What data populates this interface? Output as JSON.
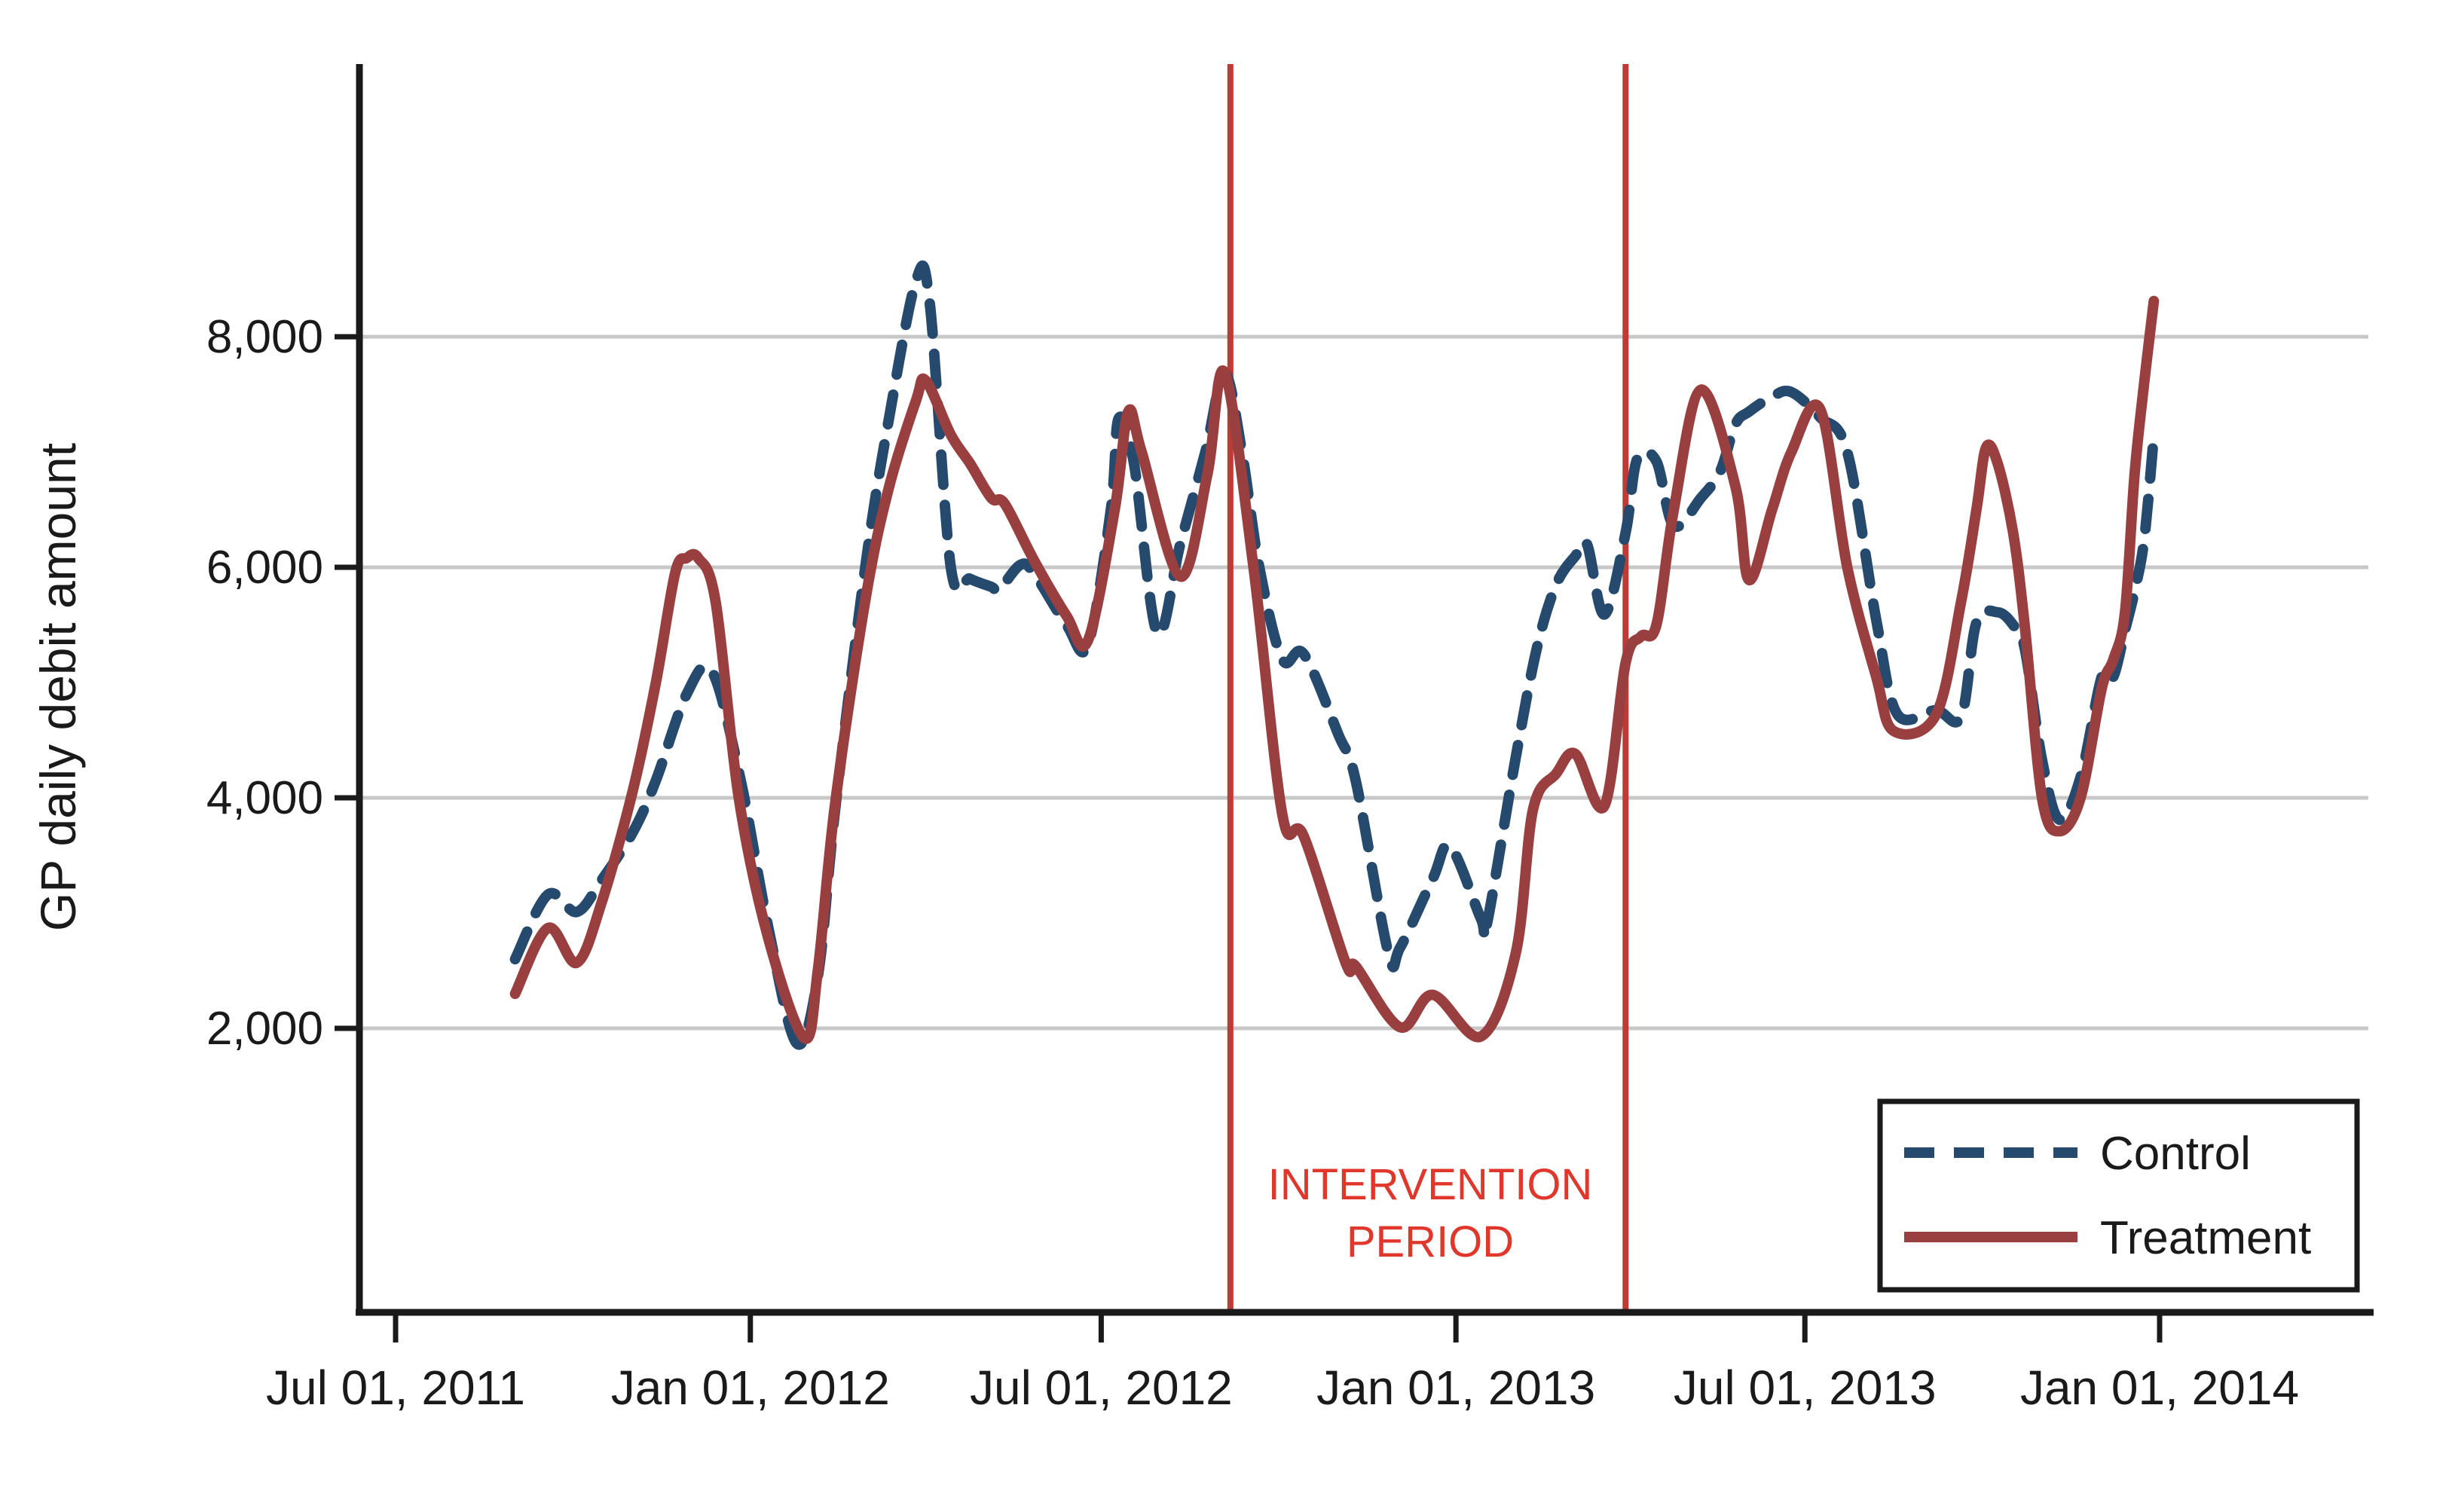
{
  "chart_data": {
    "type": "line",
    "title": "",
    "xlabel": "",
    "ylabel": "GP daily debit amount",
    "grid": true,
    "legend_position": "bottom-right",
    "colors": {
      "control": "#264a6d",
      "treatment": "#9a3f3f",
      "grid": "#c8c8c8",
      "axis": "#1a1a1a",
      "intervention_line": "#be3a34",
      "intervention_text": "#e0372c",
      "background": "#ffffff"
    },
    "y_ticks": [
      {
        "value": 2000,
        "label": "2,000"
      },
      {
        "value": 4000,
        "label": "4,000"
      },
      {
        "value": 6000,
        "label": "6,000"
      },
      {
        "value": 8000,
        "label": "8,000"
      }
    ],
    "x_ticks": [
      {
        "date": "2011-07-01",
        "label": "Jul 01, 2011"
      },
      {
        "date": "2012-01-01",
        "label": "Jan 01, 2012"
      },
      {
        "date": "2012-07-01",
        "label": "Jul 01, 2012"
      },
      {
        "date": "2013-01-01",
        "label": "Jan 01, 2013"
      },
      {
        "date": "2013-07-01",
        "label": "Jul 01, 2013"
      },
      {
        "date": "2014-01-01",
        "label": "Jan 01, 2014"
      }
    ],
    "intervention_period": {
      "text_line1": "INTERVENTION",
      "text_line2": "PERIOD",
      "start": "2012-09-06",
      "end": "2013-03-30"
    },
    "legend": {
      "control_label": "Control",
      "treatment_label": "Treatment"
    },
    "series": [
      {
        "name": "Control",
        "style": "dashed",
        "color": "#264a6d",
        "points": [
          [
            "2011-09-01",
            2600
          ],
          [
            "2011-09-18",
            3160
          ],
          [
            "2011-10-03",
            3010
          ],
          [
            "2011-10-16",
            3290
          ],
          [
            "2011-11-01",
            3700
          ],
          [
            "2011-11-13",
            4150
          ],
          [
            "2011-11-29",
            4900
          ],
          [
            "2011-12-12",
            5100
          ],
          [
            "2011-12-27",
            4150
          ],
          [
            "2012-01-10",
            2900
          ],
          [
            "2012-01-25",
            1870
          ],
          [
            "2012-02-05",
            2450
          ],
          [
            "2012-02-14",
            3900
          ],
          [
            "2012-03-01",
            6050
          ],
          [
            "2012-03-13",
            7300
          ],
          [
            "2012-03-27",
            8490
          ],
          [
            "2012-04-03",
            8300
          ],
          [
            "2012-04-14",
            6000
          ],
          [
            "2012-04-24",
            5900
          ],
          [
            "2012-05-05",
            5830
          ],
          [
            "2012-05-09",
            5805
          ],
          [
            "2012-05-20",
            6020
          ],
          [
            "2012-05-27",
            5950
          ],
          [
            "2012-06-13",
            5500
          ],
          [
            "2012-06-24",
            5320
          ],
          [
            "2012-07-06",
            6500
          ],
          [
            "2012-07-10",
            7290
          ],
          [
            "2012-07-18",
            6900
          ],
          [
            "2012-07-30",
            5430
          ],
          [
            "2012-08-11",
            6200
          ],
          [
            "2012-08-24",
            7000
          ],
          [
            "2012-09-03",
            7680
          ],
          [
            "2012-09-12",
            7000
          ],
          [
            "2012-09-21",
            6000
          ],
          [
            "2012-10-03",
            5200
          ],
          [
            "2012-10-14",
            5250
          ],
          [
            "2012-11-01",
            4550
          ],
          [
            "2012-11-10",
            4150
          ],
          [
            "2012-11-27",
            2650
          ],
          [
            "2012-12-03",
            2700
          ],
          [
            "2012-12-20",
            3300
          ],
          [
            "2012-12-29",
            3580
          ],
          [
            "2013-01-14",
            2950
          ],
          [
            "2013-01-17",
            2900
          ],
          [
            "2013-02-01",
            4350
          ],
          [
            "2013-02-12",
            5300
          ],
          [
            "2013-02-22",
            5850
          ],
          [
            "2013-03-04",
            6100
          ],
          [
            "2013-03-10",
            6200
          ],
          [
            "2013-03-19",
            5590
          ],
          [
            "2013-03-30",
            6300
          ],
          [
            "2013-04-05",
            6940
          ],
          [
            "2013-04-15",
            6920
          ],
          [
            "2013-04-24",
            6360
          ],
          [
            "2013-05-08",
            6600
          ],
          [
            "2013-05-18",
            6830
          ],
          [
            "2013-05-26",
            7240
          ],
          [
            "2013-06-02",
            7350
          ],
          [
            "2013-06-14",
            7480
          ],
          [
            "2013-06-24",
            7520
          ],
          [
            "2013-07-09",
            7300
          ],
          [
            "2013-07-23",
            7000
          ],
          [
            "2013-08-07",
            5545
          ],
          [
            "2013-08-18",
            4725
          ],
          [
            "2013-09-07",
            4760
          ],
          [
            "2013-09-20",
            4700
          ],
          [
            "2013-09-28",
            5520
          ],
          [
            "2013-10-09",
            5610
          ],
          [
            "2013-10-17",
            5500
          ],
          [
            "2013-10-23",
            5300
          ],
          [
            "2013-11-01",
            4330
          ],
          [
            "2013-11-10",
            3810
          ],
          [
            "2013-11-21",
            4180
          ],
          [
            "2013-12-02",
            5050
          ],
          [
            "2013-12-08",
            5050
          ],
          [
            "2013-12-14",
            5450
          ],
          [
            "2013-12-19",
            5790
          ],
          [
            "2013-12-24",
            6240
          ],
          [
            "2013-12-29",
            7140
          ]
        ]
      },
      {
        "name": "Treatment",
        "style": "solid",
        "color": "#9a3f3f",
        "points": [
          [
            "2011-09-01",
            2300
          ],
          [
            "2011-09-18",
            2870
          ],
          [
            "2011-10-03",
            2570
          ],
          [
            "2011-10-16",
            3100
          ],
          [
            "2011-11-01",
            4060
          ],
          [
            "2011-11-13",
            5000
          ],
          [
            "2011-11-23",
            5950
          ],
          [
            "2011-11-29",
            6080
          ],
          [
            "2011-12-05",
            6080
          ],
          [
            "2011-12-14",
            5700
          ],
          [
            "2011-12-26",
            4000
          ],
          [
            "2012-01-10",
            2800
          ],
          [
            "2012-01-29",
            1915
          ],
          [
            "2012-02-05",
            2500
          ],
          [
            "2012-02-14",
            3950
          ],
          [
            "2012-03-01",
            5750
          ],
          [
            "2012-03-13",
            6700
          ],
          [
            "2012-03-27",
            7450
          ],
          [
            "2012-04-01",
            7620
          ],
          [
            "2012-04-14",
            7150
          ],
          [
            "2012-04-24",
            6900
          ],
          [
            "2012-05-05",
            6600
          ],
          [
            "2012-05-12",
            6550
          ],
          [
            "2012-05-27",
            6065
          ],
          [
            "2012-06-13",
            5580
          ],
          [
            "2012-06-24",
            5360
          ],
          [
            "2012-07-08",
            6500
          ],
          [
            "2012-07-15",
            7350
          ],
          [
            "2012-07-22",
            7000
          ],
          [
            "2012-08-11",
            5920
          ],
          [
            "2012-08-25",
            6800
          ],
          [
            "2012-09-03",
            7690
          ],
          [
            "2012-09-18",
            6000
          ],
          [
            "2012-10-03",
            3850
          ],
          [
            "2012-10-14",
            3670
          ],
          [
            "2012-11-05",
            2560
          ],
          [
            "2012-11-10",
            2540
          ],
          [
            "2012-12-03",
            2010
          ],
          [
            "2012-12-20",
            2290
          ],
          [
            "2013-01-14",
            1930
          ],
          [
            "2013-02-01",
            2650
          ],
          [
            "2013-02-10",
            3900
          ],
          [
            "2013-02-22",
            4210
          ],
          [
            "2013-03-04",
            4380
          ],
          [
            "2013-03-19",
            3930
          ],
          [
            "2013-03-30",
            5170
          ],
          [
            "2013-04-07",
            5400
          ],
          [
            "2013-04-15",
            5500
          ],
          [
            "2013-04-24",
            6500
          ],
          [
            "2013-05-08",
            7540
          ],
          [
            "2013-05-26",
            6700
          ],
          [
            "2013-06-02",
            5890
          ],
          [
            "2013-06-14",
            6500
          ],
          [
            "2013-06-24",
            7000
          ],
          [
            "2013-07-09",
            7370
          ],
          [
            "2013-07-23",
            6000
          ],
          [
            "2013-08-07",
            5050
          ],
          [
            "2013-08-16",
            4580
          ],
          [
            "2013-09-07",
            4720
          ],
          [
            "2013-09-20",
            5700
          ],
          [
            "2013-09-28",
            6500
          ],
          [
            "2013-10-03",
            7040
          ],
          [
            "2013-10-09",
            6900
          ],
          [
            "2013-10-17",
            6300
          ],
          [
            "2013-10-23",
            5500
          ],
          [
            "2013-11-01",
            4000
          ],
          [
            "2013-11-10",
            3710
          ],
          [
            "2013-11-21",
            4000
          ],
          [
            "2013-12-02",
            4950
          ],
          [
            "2013-12-08",
            5200
          ],
          [
            "2013-12-14",
            5600
          ],
          [
            "2013-12-19",
            6800
          ],
          [
            "2013-12-24",
            7600
          ],
          [
            "2013-12-29",
            8310
          ]
        ]
      }
    ]
  }
}
